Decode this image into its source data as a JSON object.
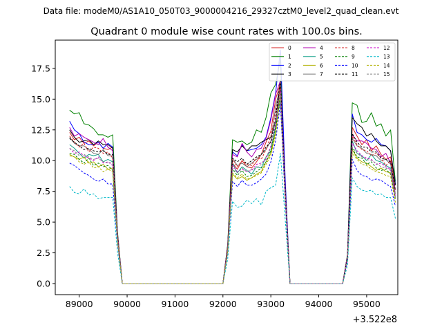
{
  "chart_data": {
    "type": "line",
    "suptitle": "Data file: modeM0/AS1A10_050T03_9000004216_29327cztM0_level2_quad_clean.evt",
    "title": "Quadrant 0 module wise count rates with 100.0s bins.",
    "xlabel": "",
    "ylabel": "",
    "x_offset_label": "+3.522e8",
    "xlim": [
      88500,
      95650
    ],
    "ylim": [
      -0.9,
      19.8
    ],
    "xticks": [
      89000,
      90000,
      91000,
      92000,
      93000,
      94000,
      95000
    ],
    "xtick_labels": [
      "89000",
      "90000",
      "91000",
      "92000",
      "93000",
      "94000",
      "95000"
    ],
    "yticks": [
      0,
      2.5,
      5,
      7.5,
      10,
      12.5,
      15,
      17.5
    ],
    "ytick_labels": [
      "0.0",
      "2.5",
      "5.0",
      "7.5",
      "10.0",
      "12.5",
      "15.0",
      "17.5"
    ],
    "grid": false,
    "legend_position": "top-right",
    "legend_columns": 4,
    "x": [
      88800,
      88900,
      89000,
      89100,
      89200,
      89300,
      89400,
      89500,
      89600,
      89700,
      89800,
      89900,
      90000,
      92000,
      92100,
      92200,
      92300,
      92400,
      92500,
      92600,
      92700,
      92800,
      92900,
      93000,
      93100,
      93200,
      93300,
      93400,
      93500,
      94500,
      94600,
      94700,
      94800,
      94900,
      95000,
      95100,
      95200,
      95300,
      95400,
      95500,
      95600
    ],
    "series": [
      {
        "name": "0",
        "color": "#d62020",
        "dash": false,
        "values": [
          12.3,
          11.7,
          11.9,
          11.4,
          11.6,
          11.2,
          11.5,
          11.0,
          10.9,
          11.1,
          3.8,
          0,
          0,
          0,
          3.0,
          9.8,
          9.3,
          10.0,
          9.5,
          9.4,
          9.9,
          10.5,
          11.5,
          12.4,
          15.0,
          16.3,
          7.5,
          0,
          0,
          0,
          2.2,
          12.7,
          12.0,
          11.3,
          11.7,
          10.8,
          11.2,
          10.5,
          10.1,
          10.3,
          8.0
        ]
      },
      {
        "name": "1",
        "color": "#008000",
        "dash": false,
        "values": [
          14.1,
          13.8,
          13.9,
          13.0,
          12.9,
          12.6,
          12.1,
          12.1,
          11.9,
          12.1,
          4.2,
          0,
          0,
          0,
          3.2,
          11.7,
          11.5,
          11.6,
          11.3,
          11.5,
          12.5,
          12.3,
          13.5,
          15.5,
          16.2,
          18.2,
          8.0,
          0,
          0,
          0,
          2.4,
          14.7,
          14.5,
          13.1,
          13.2,
          13.9,
          12.8,
          13.0,
          12.0,
          12.5,
          8.3
        ]
      },
      {
        "name": "2",
        "color": "#0000ff",
        "dash": false,
        "values": [
          13.2,
          12.5,
          12.2,
          11.5,
          11.3,
          11.3,
          11.5,
          11.0,
          11.4,
          11.1,
          4.0,
          0,
          0,
          0,
          3.1,
          10.7,
          10.4,
          11.3,
          10.8,
          10.9,
          11.0,
          11.3,
          11.9,
          13.5,
          15.5,
          19.0,
          8.5,
          0,
          0,
          0,
          2.3,
          13.8,
          12.3,
          12.1,
          11.7,
          11.5,
          11.8,
          11.3,
          11.2,
          10.8,
          8.1
        ]
      },
      {
        "name": "3",
        "color": "#000000",
        "dash": false,
        "values": [
          12.5,
          11.9,
          11.5,
          11.6,
          11.7,
          11.3,
          11.6,
          11.3,
          11.3,
          11.0,
          4.0,
          0,
          0,
          0,
          3.1,
          10.9,
          10.7,
          11.2,
          10.8,
          11.2,
          11.2,
          11.5,
          11.7,
          11.9,
          13.2,
          16.3,
          7.8,
          0,
          0,
          0,
          2.3,
          13.5,
          13.0,
          12.7,
          12.0,
          12.2,
          11.6,
          11.2,
          11.2,
          10.8,
          8.0
        ]
      },
      {
        "name": "4",
        "color": "#b000b0",
        "dash": false,
        "values": [
          12.7,
          12.0,
          12.2,
          11.9,
          11.7,
          11.5,
          11.3,
          11.8,
          11.1,
          10.8,
          4.0,
          0,
          0,
          0,
          3.0,
          10.5,
          10.3,
          11.4,
          10.7,
          10.3,
          10.9,
          11.0,
          11.8,
          13.3,
          15.4,
          16.5,
          7.8,
          0,
          0,
          0,
          2.3,
          12.1,
          11.6,
          11.6,
          11.4,
          11.0,
          10.9,
          10.3,
          10.6,
          9.8,
          7.6
        ]
      },
      {
        "name": "5",
        "color": "#12a08a",
        "dash": false,
        "values": [
          11.3,
          11.0,
          10.6,
          10.2,
          10.5,
          10.4,
          10.5,
          9.9,
          10.1,
          9.9,
          3.7,
          0,
          0,
          0,
          2.8,
          9.8,
          9.0,
          9.5,
          9.2,
          8.9,
          9.5,
          9.4,
          10.3,
          10.8,
          12.8,
          15.0,
          7.2,
          0,
          0,
          0,
          2.1,
          11.6,
          10.6,
          10.4,
          10.0,
          10.5,
          10.0,
          9.9,
          9.6,
          9.4,
          7.0
        ]
      },
      {
        "name": "6",
        "color": "#b0b000",
        "dash": false,
        "values": [
          10.5,
          10.3,
          10.1,
          10.3,
          9.8,
          9.9,
          9.5,
          9.7,
          9.3,
          9.4,
          3.5,
          0,
          0,
          0,
          2.6,
          8.9,
          8.5,
          8.7,
          8.4,
          8.6,
          8.9,
          9.1,
          9.9,
          10.6,
          12.3,
          15.8,
          7.0,
          0,
          0,
          0,
          2.0,
          10.9,
          10.2,
          9.9,
          9.8,
          9.5,
          9.2,
          9.4,
          9.1,
          9.0,
          6.9
        ]
      },
      {
        "name": "7",
        "color": "#777777",
        "dash": false,
        "values": [
          11.9,
          11.4,
          11.2,
          11.2,
          10.9,
          10.6,
          10.5,
          10.9,
          10.4,
          10.4,
          3.8,
          0,
          0,
          0,
          2.9,
          10.2,
          9.6,
          9.8,
          9.5,
          9.8,
          10.1,
          10.5,
          10.9,
          11.6,
          14.4,
          16.1,
          7.5,
          0,
          0,
          0,
          2.2,
          11.8,
          11.2,
          11.0,
          10.6,
          10.5,
          10.4,
          10.0,
          10.1,
          9.7,
          7.3
        ]
      },
      {
        "name": "8",
        "color": "#d62020",
        "dash": true,
        "values": [
          12.0,
          11.5,
          11.1,
          11.4,
          10.7,
          11.1,
          11.0,
          10.6,
          10.7,
          10.2,
          3.9,
          0,
          0,
          0,
          3.0,
          10.1,
          9.5,
          10.0,
          9.7,
          9.6,
          10.3,
          10.1,
          10.9,
          12.0,
          14.0,
          16.0,
          7.4,
          0,
          0,
          0,
          2.2,
          12.0,
          11.3,
          10.9,
          10.8,
          10.4,
          10.6,
          10.2,
          9.6,
          10.0,
          7.5
        ]
      },
      {
        "name": "9",
        "color": "#008000",
        "dash": true,
        "values": [
          10.6,
          10.5,
          10.1,
          9.8,
          10.2,
          9.6,
          9.8,
          9.5,
          9.6,
          9.2,
          3.5,
          0,
          0,
          0,
          2.7,
          9.3,
          8.8,
          9.2,
          8.7,
          8.8,
          9.1,
          9.4,
          9.9,
          10.8,
          12.6,
          15.3,
          7.1,
          0,
          0,
          0,
          2.1,
          11.0,
          10.3,
          10.2,
          9.7,
          9.9,
          9.4,
          9.2,
          9.3,
          8.9,
          6.8
        ]
      },
      {
        "name": "10",
        "color": "#0000ff",
        "dash": true,
        "values": [
          9.8,
          9.6,
          9.3,
          9.0,
          8.8,
          8.5,
          8.3,
          8.5,
          8.1,
          8.1,
          3.2,
          0,
          0,
          0,
          2.5,
          8.3,
          7.9,
          8.4,
          8.0,
          8.0,
          8.2,
          8.5,
          8.9,
          9.9,
          11.6,
          14.7,
          6.7,
          0,
          0,
          0,
          1.9,
          10.1,
          9.2,
          8.8,
          8.7,
          8.4,
          8.5,
          8.4,
          8.1,
          7.9,
          6.3
        ]
      },
      {
        "name": "11",
        "color": "#000000",
        "dash": true,
        "values": [
          11.8,
          11.5,
          11.2,
          10.9,
          11.0,
          10.8,
          10.7,
          10.8,
          10.5,
          10.5,
          3.8,
          0,
          0,
          0,
          2.9,
          10.2,
          9.9,
          10.2,
          9.7,
          10.0,
          10.3,
          10.5,
          11.1,
          11.5,
          13.5,
          16.6,
          7.6,
          0,
          0,
          0,
          2.2,
          12.2,
          11.5,
          11.1,
          11.1,
          10.7,
          10.7,
          10.2,
          10.1,
          9.9,
          7.6
        ]
      },
      {
        "name": "12",
        "color": "#cc00cc",
        "dash": true,
        "values": [
          11.0,
          10.6,
          10.7,
          10.4,
          10.2,
          10.0,
          10.3,
          9.8,
          9.9,
          9.6,
          3.6,
          0,
          0,
          0,
          2.8,
          9.6,
          9.1,
          9.3,
          9.1,
          9.2,
          9.7,
          9.8,
          10.1,
          11.2,
          13.0,
          15.7,
          7.2,
          0,
          0,
          0,
          2.1,
          11.4,
          10.8,
          10.4,
          10.2,
          10.1,
          9.7,
          9.8,
          9.5,
          9.3,
          7.1
        ]
      },
      {
        "name": "13",
        "color": "#00b8c8",
        "dash": true,
        "values": [
          7.9,
          7.4,
          7.3,
          7.7,
          7.2,
          7.3,
          6.9,
          7.0,
          7.0,
          7.0,
          2.5,
          0,
          0,
          0,
          2.0,
          6.7,
          6.2,
          6.3,
          6.8,
          6.5,
          6.9,
          6.4,
          7.5,
          7.8,
          8.0,
          10.6,
          5.2,
          0,
          0,
          0,
          1.5,
          8.6,
          7.9,
          7.6,
          7.5,
          7.6,
          7.2,
          7.3,
          7.0,
          7.0,
          5.3
        ]
      },
      {
        "name": "14",
        "color": "#b0b000",
        "dash": true,
        "values": [
          10.4,
          10.3,
          9.9,
          9.7,
          9.9,
          9.4,
          9.5,
          9.1,
          9.3,
          9.1,
          3.4,
          0,
          0,
          0,
          2.6,
          9.0,
          8.6,
          8.9,
          8.5,
          8.6,
          8.8,
          9.0,
          9.7,
          10.4,
          12.1,
          15.2,
          6.9,
          0,
          0,
          0,
          2.0,
          10.6,
          10.1,
          9.7,
          9.6,
          9.3,
          9.1,
          9.0,
          8.8,
          8.7,
          6.6
        ]
      },
      {
        "name": "15",
        "color": "#888888",
        "dash": true,
        "values": [
          11.0,
          10.8,
          10.4,
          10.5,
          10.3,
          10.1,
          10.2,
          9.9,
          9.8,
          9.9,
          3.6,
          0,
          0,
          0,
          2.7,
          9.4,
          9.0,
          9.4,
          9.1,
          9.3,
          9.4,
          9.7,
          10.3,
          11.0,
          13.4,
          15.5,
          7.2,
          0,
          0,
          0,
          2.1,
          11.1,
          10.6,
          10.3,
          10.1,
          10.0,
          9.8,
          9.5,
          9.4,
          9.2,
          6.9
        ]
      }
    ]
  }
}
